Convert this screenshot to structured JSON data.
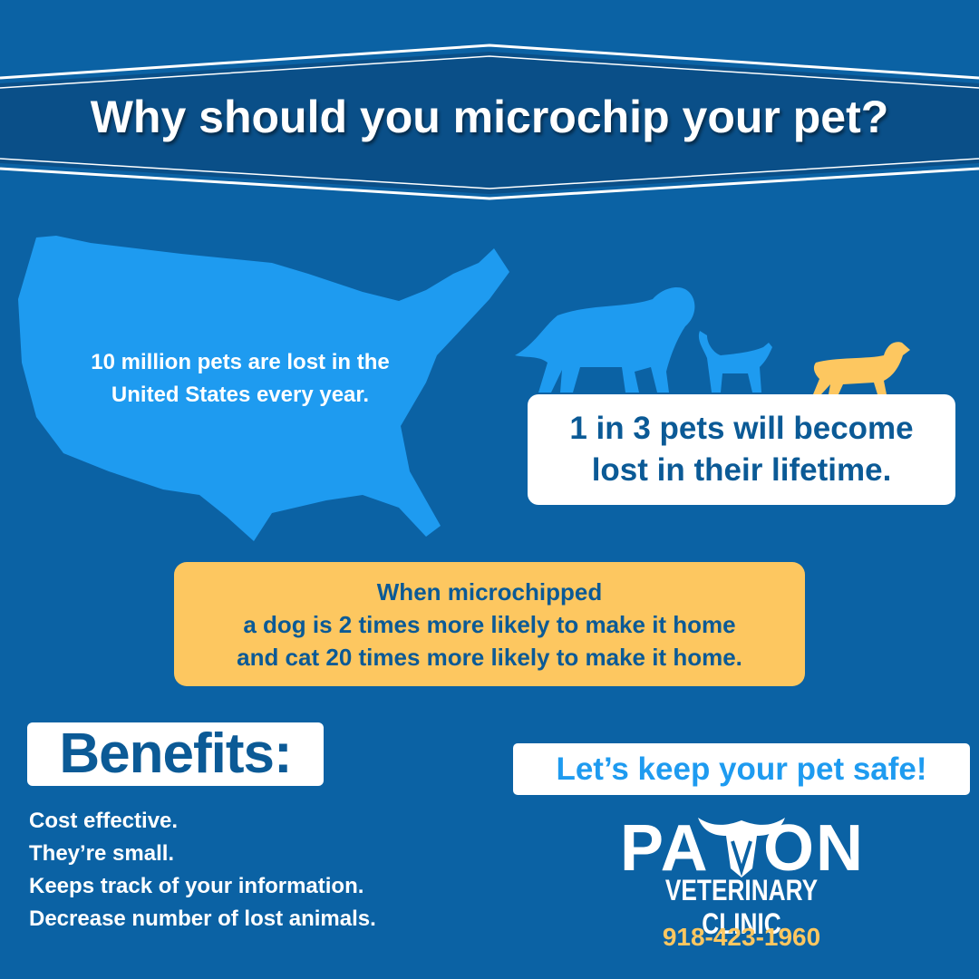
{
  "header": {
    "title": "Why should you microchip your pet?"
  },
  "map_text": {
    "lines": [
      "10 million pets are lost in the",
      "United States every year."
    ]
  },
  "stat": {
    "lines": [
      "1 in 3 pets will become",
      "lost in their lifetime."
    ]
  },
  "callout": {
    "lines": [
      "When microchipped",
      "a dog is 2 times more likely to make it home",
      "and cat 20 times more likely to make it home."
    ]
  },
  "benefits": {
    "title": "Benefits:",
    "items": [
      "Cost effective.",
      "They’re small.",
      "Keeps track of your information.",
      "Decrease number of lost animals."
    ]
  },
  "cta": "Let’s keep your pet safe!",
  "logo": {
    "name_left": "PA",
    "name_right": "ON",
    "subtitle": "VETERINARY CLINIC",
    "phone": "918-423-1960"
  }
}
